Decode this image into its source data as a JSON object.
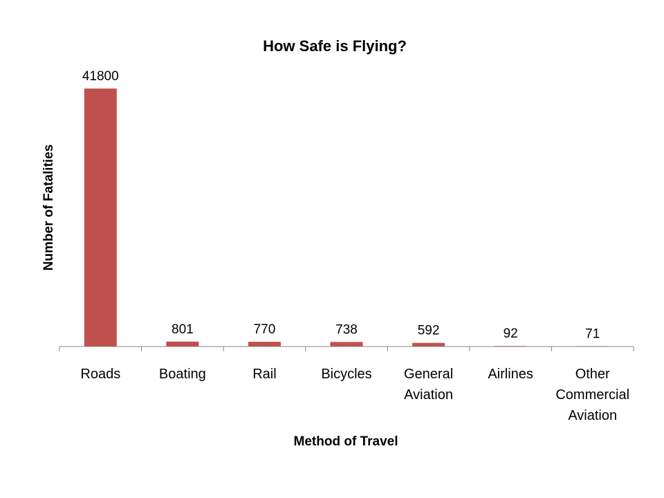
{
  "chart_data": {
    "type": "bar",
    "title": "How Safe is Flying?",
    "xlabel": "Method of Travel",
    "ylabel": "Number of Fatalities",
    "categories": [
      [
        "Roads"
      ],
      [
        "Boating"
      ],
      [
        "Rail"
      ],
      [
        "Bicycles"
      ],
      [
        "General",
        "Aviation"
      ],
      [
        "Airlines"
      ],
      [
        "Other",
        "Commercial",
        "Aviation"
      ]
    ],
    "values": [
      41800,
      801,
      770,
      738,
      592,
      92,
      71
    ],
    "ylim": [
      0,
      41800
    ],
    "grid": false,
    "legend": "none",
    "bar_color": "#c0504d",
    "axis_color": "#868686"
  }
}
